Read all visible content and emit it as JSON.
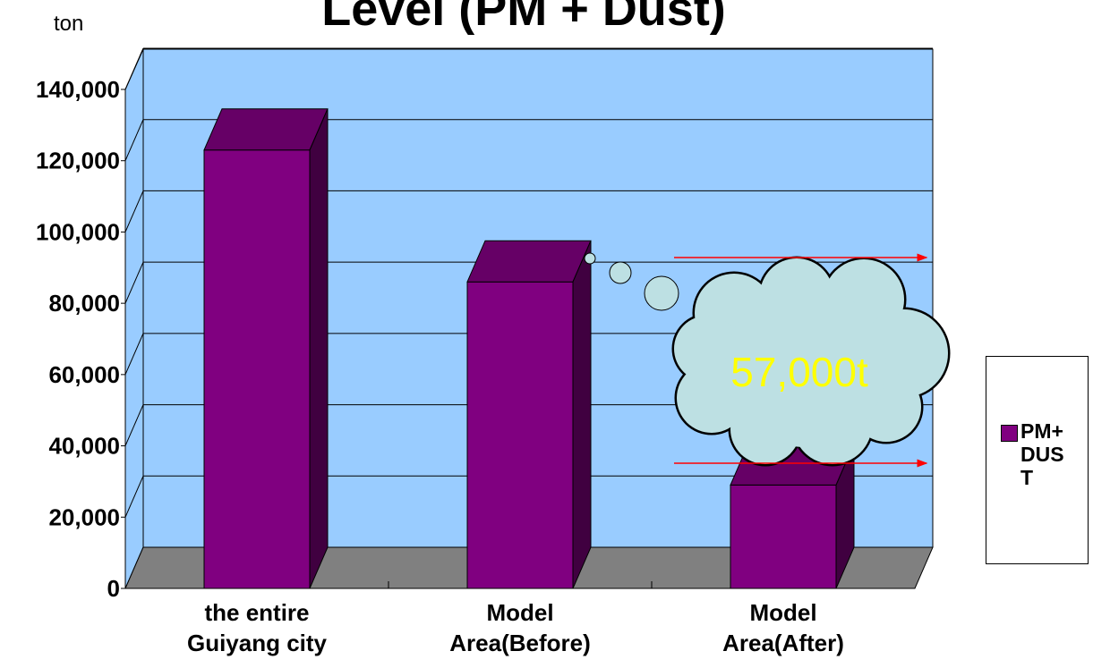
{
  "chart_data": {
    "type": "bar3d",
    "title": "Level (PM + Dust)",
    "y_label": "ton",
    "categories": [
      "the entire Guiyang city",
      "Model Area(Before)",
      "Model Area(After)"
    ],
    "series": [
      {
        "name": "PM+DUST",
        "color": "#800080",
        "values": [
          123000,
          86000,
          29000
        ]
      }
    ],
    "ylim": [
      0,
      140000
    ],
    "yticks": [
      0,
      {
        "value": 20000,
        "label": "20,000"
      },
      {
        "value": 40000,
        "label": "40,000"
      },
      {
        "value": 60000,
        "label": "60,000"
      },
      {
        "value": 80000,
        "label": "80,000"
      },
      {
        "value": 100000,
        "label": "100,000"
      },
      {
        "value": 120000,
        "label": "120,000"
      },
      {
        "value": 140000,
        "label": "140,000"
      }
    ],
    "grid": true,
    "legend": "right",
    "annotation": "57,000t"
  }
}
